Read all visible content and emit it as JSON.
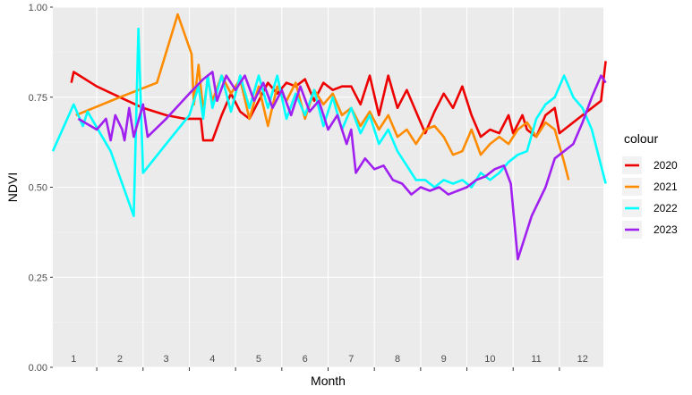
{
  "chart_data": {
    "type": "line",
    "xlabel": "Month",
    "ylabel": "NDVI",
    "ylim": [
      0,
      1
    ],
    "xlim": [
      0.55,
      12.45
    ],
    "y_ticks": [
      0.0,
      0.25,
      0.5,
      0.75,
      1.0
    ],
    "y_tick_labels": [
      "0.00",
      "0.25",
      "0.50",
      "0.75",
      "1.00"
    ],
    "month_labels": [
      "1",
      "2",
      "3",
      "4",
      "5",
      "6",
      "7",
      "8",
      "9",
      "10",
      "11",
      "12"
    ],
    "grid": true,
    "legend": {
      "title": "colour",
      "position": "right"
    },
    "series": [
      {
        "name": "2020",
        "color": "#EE0000",
        "points": [
          [
            0.95,
            0.79
          ],
          [
            1.0,
            0.82
          ],
          [
            1.5,
            0.78
          ],
          [
            2.0,
            0.75
          ],
          [
            2.5,
            0.72
          ],
          [
            3.0,
            0.7
          ],
          [
            3.4,
            0.69
          ],
          [
            3.75,
            0.69
          ],
          [
            3.8,
            0.63
          ],
          [
            4.0,
            0.63
          ],
          [
            4.2,
            0.7
          ],
          [
            4.4,
            0.76
          ],
          [
            4.6,
            0.71
          ],
          [
            4.8,
            0.69
          ],
          [
            5.0,
            0.74
          ],
          [
            5.2,
            0.79
          ],
          [
            5.4,
            0.76
          ],
          [
            5.6,
            0.79
          ],
          [
            5.8,
            0.78
          ],
          [
            6.0,
            0.8
          ],
          [
            6.2,
            0.74
          ],
          [
            6.4,
            0.79
          ],
          [
            6.6,
            0.77
          ],
          [
            6.8,
            0.78
          ],
          [
            7.0,
            0.78
          ],
          [
            7.2,
            0.73
          ],
          [
            7.4,
            0.81
          ],
          [
            7.6,
            0.7
          ],
          [
            7.8,
            0.81
          ],
          [
            8.0,
            0.72
          ],
          [
            8.2,
            0.77
          ],
          [
            8.4,
            0.71
          ],
          [
            8.6,
            0.65
          ],
          [
            8.8,
            0.71
          ],
          [
            9.0,
            0.76
          ],
          [
            9.2,
            0.72
          ],
          [
            9.4,
            0.78
          ],
          [
            9.6,
            0.7
          ],
          [
            9.8,
            0.64
          ],
          [
            10.0,
            0.66
          ],
          [
            10.2,
            0.65
          ],
          [
            10.4,
            0.7
          ],
          [
            10.5,
            0.65
          ],
          [
            10.7,
            0.7
          ],
          [
            10.8,
            0.66
          ],
          [
            11.0,
            0.64
          ],
          [
            11.2,
            0.7
          ],
          [
            11.4,
            0.72
          ],
          [
            11.5,
            0.65
          ],
          [
            12.0,
            0.7
          ],
          [
            12.4,
            0.74
          ],
          [
            12.5,
            0.85
          ]
        ]
      },
      {
        "name": "2021",
        "color": "#FF8C00",
        "points": [
          [
            1.05,
            0.7
          ],
          [
            2.0,
            0.75
          ],
          [
            2.8,
            0.79
          ],
          [
            3.25,
            0.98
          ],
          [
            3.55,
            0.87
          ],
          [
            3.6,
            0.73
          ],
          [
            3.7,
            0.84
          ],
          [
            3.8,
            0.71
          ],
          [
            3.9,
            0.8
          ],
          [
            4.0,
            0.74
          ],
          [
            4.2,
            0.81
          ],
          [
            4.4,
            0.76
          ],
          [
            4.6,
            0.8
          ],
          [
            4.8,
            0.69
          ],
          [
            5.0,
            0.78
          ],
          [
            5.2,
            0.67
          ],
          [
            5.4,
            0.78
          ],
          [
            5.6,
            0.74
          ],
          [
            5.8,
            0.79
          ],
          [
            6.0,
            0.69
          ],
          [
            6.2,
            0.77
          ],
          [
            6.4,
            0.73
          ],
          [
            6.6,
            0.76
          ],
          [
            6.8,
            0.7
          ],
          [
            7.0,
            0.72
          ],
          [
            7.2,
            0.67
          ],
          [
            7.4,
            0.71
          ],
          [
            7.6,
            0.66
          ],
          [
            7.8,
            0.7
          ],
          [
            8.0,
            0.64
          ],
          [
            8.2,
            0.66
          ],
          [
            8.4,
            0.62
          ],
          [
            8.6,
            0.66
          ],
          [
            8.8,
            0.67
          ],
          [
            9.0,
            0.64
          ],
          [
            9.2,
            0.59
          ],
          [
            9.4,
            0.6
          ],
          [
            9.6,
            0.66
          ],
          [
            9.8,
            0.59
          ],
          [
            10.0,
            0.62
          ],
          [
            10.2,
            0.64
          ],
          [
            10.4,
            0.62
          ],
          [
            10.6,
            0.66
          ],
          [
            10.8,
            0.68
          ],
          [
            11.0,
            0.64
          ],
          [
            11.2,
            0.68
          ],
          [
            11.4,
            0.66
          ],
          [
            11.6,
            0.57
          ],
          [
            11.7,
            0.52
          ]
        ]
      },
      {
        "name": "2022",
        "color": "#00FFFF",
        "points": [
          [
            0.55,
            0.6
          ],
          [
            1.0,
            0.73
          ],
          [
            1.2,
            0.67
          ],
          [
            1.3,
            0.71
          ],
          [
            1.8,
            0.6
          ],
          [
            2.3,
            0.42
          ],
          [
            2.4,
            0.94
          ],
          [
            2.5,
            0.54
          ],
          [
            3.0,
            0.62
          ],
          [
            3.5,
            0.7
          ],
          [
            3.7,
            0.78
          ],
          [
            3.8,
            0.69
          ],
          [
            3.9,
            0.81
          ],
          [
            4.0,
            0.72
          ],
          [
            4.2,
            0.81
          ],
          [
            4.4,
            0.71
          ],
          [
            4.6,
            0.81
          ],
          [
            4.8,
            0.72
          ],
          [
            5.0,
            0.81
          ],
          [
            5.2,
            0.72
          ],
          [
            5.4,
            0.81
          ],
          [
            5.6,
            0.69
          ],
          [
            5.8,
            0.76
          ],
          [
            6.0,
            0.7
          ],
          [
            6.2,
            0.77
          ],
          [
            6.4,
            0.67
          ],
          [
            6.6,
            0.75
          ],
          [
            6.8,
            0.66
          ],
          [
            7.0,
            0.72
          ],
          [
            7.2,
            0.65
          ],
          [
            7.4,
            0.7
          ],
          [
            7.6,
            0.62
          ],
          [
            7.8,
            0.66
          ],
          [
            8.0,
            0.6
          ],
          [
            8.2,
            0.56
          ],
          [
            8.4,
            0.52
          ],
          [
            8.6,
            0.52
          ],
          [
            8.8,
            0.5
          ],
          [
            9.0,
            0.52
          ],
          [
            9.2,
            0.51
          ],
          [
            9.4,
            0.52
          ],
          [
            9.6,
            0.5
          ],
          [
            9.8,
            0.54
          ],
          [
            10.0,
            0.52
          ],
          [
            10.2,
            0.54
          ],
          [
            10.4,
            0.57
          ],
          [
            10.6,
            0.59
          ],
          [
            10.8,
            0.6
          ],
          [
            11.0,
            0.69
          ],
          [
            11.2,
            0.73
          ],
          [
            11.4,
            0.75
          ],
          [
            11.6,
            0.81
          ],
          [
            11.8,
            0.75
          ],
          [
            12.0,
            0.72
          ],
          [
            12.2,
            0.66
          ],
          [
            12.5,
            0.51
          ]
        ]
      },
      {
        "name": "2023",
        "color": "#A020F0",
        "points": [
          [
            1.1,
            0.69
          ],
          [
            1.5,
            0.66
          ],
          [
            1.7,
            0.69
          ],
          [
            1.8,
            0.63
          ],
          [
            1.9,
            0.7
          ],
          [
            2.05,
            0.66
          ],
          [
            2.1,
            0.63
          ],
          [
            2.2,
            0.72
          ],
          [
            2.3,
            0.64
          ],
          [
            2.5,
            0.73
          ],
          [
            2.6,
            0.64
          ],
          [
            3.0,
            0.69
          ],
          [
            3.5,
            0.76
          ],
          [
            3.8,
            0.8
          ],
          [
            4.0,
            0.82
          ],
          [
            4.1,
            0.74
          ],
          [
            4.3,
            0.81
          ],
          [
            4.5,
            0.77
          ],
          [
            4.7,
            0.81
          ],
          [
            4.9,
            0.74
          ],
          [
            5.1,
            0.79
          ],
          [
            5.3,
            0.72
          ],
          [
            5.5,
            0.77
          ],
          [
            5.7,
            0.7
          ],
          [
            5.9,
            0.78
          ],
          [
            6.1,
            0.71
          ],
          [
            6.3,
            0.74
          ],
          [
            6.5,
            0.66
          ],
          [
            6.7,
            0.7
          ],
          [
            6.9,
            0.62
          ],
          [
            7.0,
            0.66
          ],
          [
            7.1,
            0.54
          ],
          [
            7.3,
            0.58
          ],
          [
            7.5,
            0.55
          ],
          [
            7.7,
            0.56
          ],
          [
            7.9,
            0.52
          ],
          [
            8.1,
            0.51
          ],
          [
            8.3,
            0.48
          ],
          [
            8.5,
            0.5
          ],
          [
            8.7,
            0.49
          ],
          [
            8.9,
            0.5
          ],
          [
            9.1,
            0.48
          ],
          [
            9.3,
            0.49
          ],
          [
            9.5,
            0.5
          ],
          [
            9.7,
            0.52
          ],
          [
            9.9,
            0.53
          ],
          [
            10.1,
            0.55
          ],
          [
            10.3,
            0.56
          ],
          [
            10.45,
            0.51
          ],
          [
            10.6,
            0.3
          ],
          [
            10.9,
            0.42
          ],
          [
            11.2,
            0.5
          ],
          [
            11.4,
            0.58
          ],
          [
            11.6,
            0.6
          ],
          [
            11.8,
            0.62
          ],
          [
            12.0,
            0.68
          ],
          [
            12.2,
            0.75
          ],
          [
            12.4,
            0.81
          ],
          [
            12.5,
            0.79
          ]
        ]
      }
    ]
  }
}
